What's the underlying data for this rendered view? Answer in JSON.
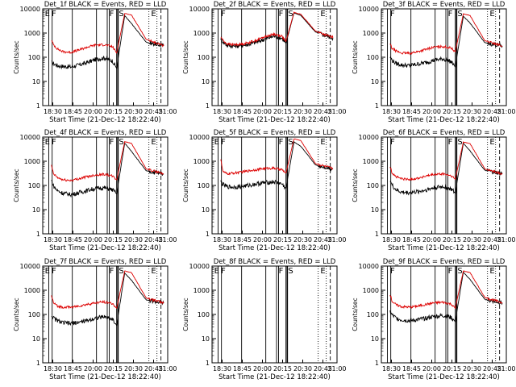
{
  "colors": {
    "events": "#000000",
    "lld": "#dd0000",
    "axis": "#000000",
    "background": "#ffffff"
  },
  "shared": {
    "xlabel": "Start Time (21-Dec-12 18:22:40)",
    "ylabel": "Counts/sec",
    "x_ticks": [
      "18:30",
      "18:45",
      "20:00",
      "20:15",
      "20:30",
      "20:45",
      "21:00"
    ],
    "y_ticks": [
      "1",
      "10",
      "100",
      "1000",
      "10000"
    ],
    "scale": "log",
    "ylim": [
      1,
      10000
    ],
    "xlim_minutes_after_start": [
      -8,
      178
    ]
  },
  "chart_data": [
    {
      "type": "line",
      "title": "Det_1f BLACK = Events, RED = LLD",
      "markers": [
        "E",
        "F",
        "F",
        "S",
        "E"
      ],
      "series": [
        {
          "name": "Events",
          "values": [
            60,
            55,
            45,
            42,
            40,
            48,
            60,
            80,
            95,
            70,
            35,
            5200,
            2500,
            420,
            300
          ]
        },
        {
          "name": "LLD",
          "values": [
            500,
            330,
            220,
            170,
            160,
            200,
            260,
            320,
            330,
            270,
            150,
            6500,
            5600,
            550,
            300
          ]
        }
      ]
    },
    {
      "type": "line",
      "title": "Det_2f BLACK = Events, RED = LLD",
      "markers": [
        "F",
        "F",
        "S",
        "E"
      ],
      "series": [
        {
          "name": "Events",
          "values": [
            620,
            450,
            320,
            290,
            300,
            340,
            420,
            560,
            740,
            620,
            380,
            6800,
            5400,
            1100,
            620
          ]
        },
        {
          "name": "LLD",
          "values": [
            680,
            520,
            360,
            330,
            340,
            400,
            500,
            700,
            900,
            750,
            440,
            7200,
            6000,
            1200,
            650
          ]
        }
      ]
    },
    {
      "type": "line",
      "title": "Det_3f BLACK = Events, RED = LLD",
      "markers": [
        "F",
        "F",
        "S",
        "E"
      ],
      "series": [
        {
          "name": "Events",
          "values": [
            100,
            75,
            55,
            48,
            45,
            52,
            60,
            75,
            85,
            65,
            40,
            5000,
            2600,
            400,
            290
          ]
        },
        {
          "name": "LLD",
          "values": [
            350,
            230,
            180,
            150,
            145,
            170,
            210,
            260,
            280,
            240,
            170,
            6200,
            5300,
            480,
            300
          ]
        }
      ]
    },
    {
      "type": "line",
      "title": "Det_4f BLACK = Events, RED = LLD",
      "markers": [
        "E",
        "F",
        "F",
        "S",
        "E"
      ],
      "series": [
        {
          "name": "Events",
          "values": [
            160,
            95,
            60,
            48,
            42,
            50,
            62,
            75,
            80,
            65,
            45,
            5600,
            2600,
            400,
            300
          ]
        },
        {
          "name": "LLD",
          "values": [
            650,
            300,
            210,
            170,
            160,
            190,
            230,
            270,
            290,
            240,
            170,
            6500,
            5500,
            480,
            310
          ]
        }
      ]
    },
    {
      "type": "line",
      "title": "Det_5f BLACK = Events, RED = LLD",
      "markers": [
        "E",
        "F",
        "F",
        "S",
        "E"
      ],
      "series": [
        {
          "name": "Events",
          "values": [
            140,
            110,
            90,
            85,
            90,
            100,
            115,
            130,
            140,
            115,
            75,
            6300,
            4200,
            700,
            480
          ]
        },
        {
          "name": "LLD",
          "values": [
            1300,
            380,
            300,
            320,
            350,
            400,
            450,
            500,
            520,
            450,
            320,
            8500,
            7200,
            800,
            500
          ]
        }
      ]
    },
    {
      "type": "line",
      "title": "Det_6f BLACK = Events, RED = LLD",
      "markers": [
        "F",
        "F",
        "S",
        "E"
      ],
      "series": [
        {
          "name": "Events",
          "values": [
            170,
            100,
            65,
            52,
            50,
            55,
            65,
            80,
            90,
            70,
            48,
            5600,
            2700,
            420,
            300
          ]
        },
        {
          "name": "LLD",
          "values": [
            600,
            330,
            230,
            190,
            175,
            200,
            240,
            280,
            300,
            250,
            180,
            6200,
            5400,
            480,
            300
          ]
        }
      ]
    },
    {
      "type": "line",
      "title": "Det_7f BLACK = Events, RED = LLD",
      "markers": [
        "E",
        "F",
        "F",
        "S",
        "E"
      ],
      "series": [
        {
          "name": "Events",
          "values": [
            90,
            70,
            55,
            45,
            42,
            48,
            55,
            70,
            80,
            65,
            35,
            5200,
            2600,
            400,
            290
          ]
        },
        {
          "name": "LLD",
          "values": [
            600,
            300,
            220,
            200,
            200,
            220,
            260,
            300,
            330,
            280,
            180,
            6200,
            5400,
            480,
            300
          ]
        }
      ]
    },
    {
      "type": "line",
      "title": "Det_8f BLACK = Events, RED = LLD",
      "markers": [
        "E",
        "F",
        "F",
        "S",
        "E"
      ],
      "series": []
    },
    {
      "type": "line",
      "title": "Det_9f BLACK = Events, RED = LLD",
      "markers": [
        "F",
        "F",
        "S",
        "E"
      ],
      "series": [
        {
          "name": "Events",
          "values": [
            130,
            95,
            70,
            60,
            55,
            60,
            70,
            82,
            90,
            75,
            50,
            5600,
            2800,
            420,
            300
          ]
        },
        {
          "name": "LLD",
          "values": [
            700,
            350,
            250,
            210,
            200,
            220,
            260,
            300,
            320,
            270,
            180,
            6300,
            5400,
            500,
            310
          ]
        }
      ]
    }
  ]
}
